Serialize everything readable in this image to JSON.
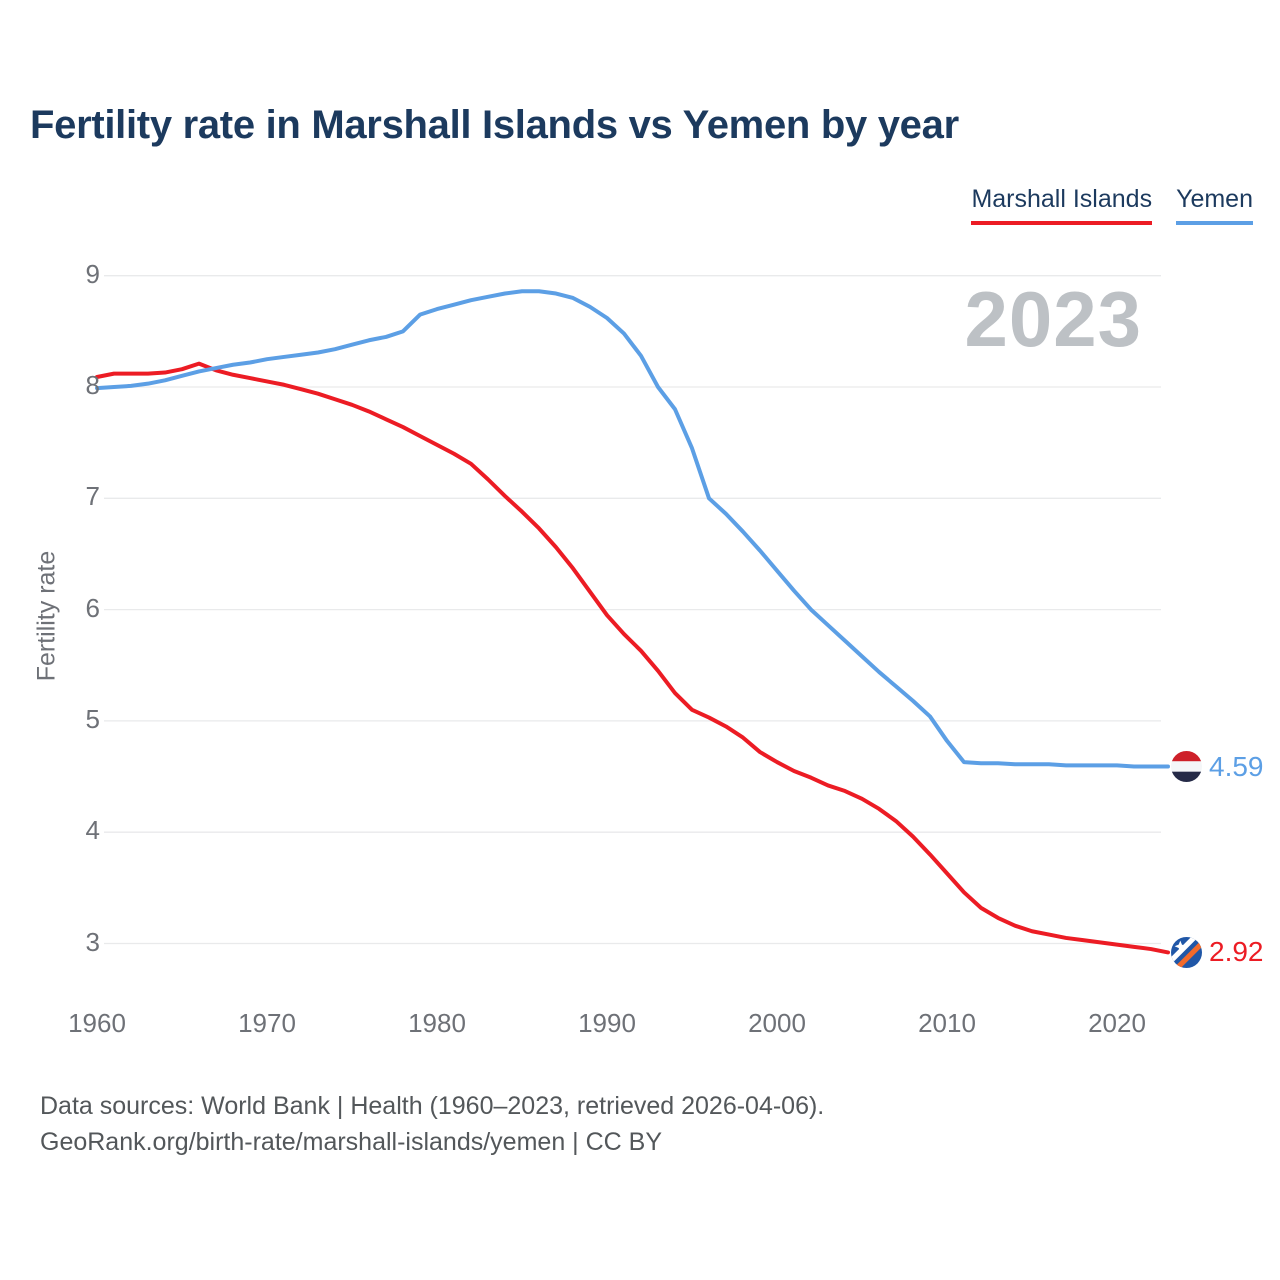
{
  "title": "Fertility rate in Marshall Islands vs Yemen by year",
  "watermark": "2023",
  "legend": {
    "items": [
      {
        "label": "Marshall Islands",
        "color": "#EC1C24"
      },
      {
        "label": "Yemen",
        "color": "#5C9FE5"
      }
    ]
  },
  "y_axis": {
    "label": "Fertility rate",
    "ticks": [
      "9",
      "8",
      "7",
      "6",
      "5",
      "4",
      "3"
    ]
  },
  "x_axis": {
    "ticks": [
      "1960",
      "1970",
      "1980",
      "1990",
      "2000",
      "2010",
      "2020"
    ]
  },
  "end_labels": [
    {
      "series": "Yemen",
      "value": "4.59",
      "flag_icon": "yemen-flag-icon",
      "color": "#5C9FE5"
    },
    {
      "series": "Marshall Islands",
      "value": "2.92",
      "flag_icon": "marshall-islands-flag-icon",
      "color": "#EC1C24"
    }
  ],
  "footer": {
    "line1": "Data sources: World Bank | Health (1960–2023, retrieved 2026-04-06).",
    "line2": "GeoRank.org/birth-rate/marshall-islands/yemen | CC BY"
  },
  "colors": {
    "title_text": "#1C3A5E",
    "axis_text": "#6E7177",
    "gridline": "#E9EAEB",
    "watermark_text": "#BDC1C5",
    "footer_text": "#53575A",
    "marshall_islands_line": "#EC1C24",
    "yemen_line": "#5C9FE5"
  },
  "chart_data": {
    "type": "line",
    "title": "Fertility rate in Marshall Islands vs Yemen by year",
    "xlabel": "",
    "ylabel": "Fertility rate",
    "xlim": [
      1960,
      2023
    ],
    "ylim": [
      2.6,
      9.2
    ],
    "y_ticks": [
      9,
      8,
      7,
      6,
      5,
      4,
      3
    ],
    "x_ticks": [
      1960,
      1970,
      1980,
      1990,
      2000,
      2010,
      2020
    ],
    "grid": "horizontal",
    "legend_position": "top-right",
    "x": [
      1960,
      1961,
      1962,
      1963,
      1964,
      1965,
      1966,
      1967,
      1968,
      1969,
      1970,
      1971,
      1972,
      1973,
      1974,
      1975,
      1976,
      1977,
      1978,
      1979,
      1980,
      1981,
      1982,
      1983,
      1984,
      1985,
      1986,
      1987,
      1988,
      1989,
      1990,
      1991,
      1992,
      1993,
      1994,
      1995,
      1996,
      1997,
      1998,
      1999,
      2000,
      2001,
      2002,
      2003,
      2004,
      2005,
      2006,
      2007,
      2008,
      2009,
      2010,
      2011,
      2012,
      2013,
      2014,
      2015,
      2016,
      2017,
      2018,
      2019,
      2020,
      2021,
      2022,
      2023
    ],
    "series": [
      {
        "name": "Marshall Islands",
        "color": "#EC1C24",
        "end_value": 2.92,
        "values": [
          8.09,
          8.12,
          8.12,
          8.12,
          8.13,
          8.16,
          8.21,
          8.15,
          8.11,
          8.08,
          8.05,
          8.02,
          7.98,
          7.94,
          7.89,
          7.84,
          7.78,
          7.71,
          7.64,
          7.56,
          7.48,
          7.4,
          7.31,
          7.17,
          7.02,
          6.88,
          6.73,
          6.56,
          6.37,
          6.16,
          5.95,
          5.78,
          5.63,
          5.45,
          5.25,
          5.1,
          5.03,
          4.95,
          4.85,
          4.72,
          4.63,
          4.55,
          4.49,
          4.42,
          4.37,
          4.3,
          4.21,
          4.1,
          3.96,
          3.8,
          3.63,
          3.46,
          3.32,
          3.23,
          3.16,
          3.11,
          3.08,
          3.05,
          3.03,
          3.01,
          2.99,
          2.97,
          2.95,
          2.92
        ]
      },
      {
        "name": "Yemen",
        "color": "#5C9FE5",
        "end_value": 4.59,
        "values": [
          7.99,
          8.0,
          8.01,
          8.03,
          8.06,
          8.1,
          8.14,
          8.17,
          8.2,
          8.22,
          8.25,
          8.27,
          8.29,
          8.31,
          8.34,
          8.38,
          8.42,
          8.45,
          8.5,
          8.65,
          8.7,
          8.74,
          8.78,
          8.81,
          8.84,
          8.86,
          8.86,
          8.84,
          8.8,
          8.72,
          8.62,
          8.48,
          8.28,
          8.0,
          7.8,
          7.45,
          7.0,
          6.86,
          6.7,
          6.53,
          6.35,
          6.17,
          6.0,
          5.86,
          5.72,
          5.58,
          5.44,
          5.31,
          5.18,
          5.04,
          4.82,
          4.63,
          4.62,
          4.62,
          4.61,
          4.61,
          4.61,
          4.6,
          4.6,
          4.6,
          4.6,
          4.59,
          4.59,
          4.59
        ]
      }
    ]
  }
}
